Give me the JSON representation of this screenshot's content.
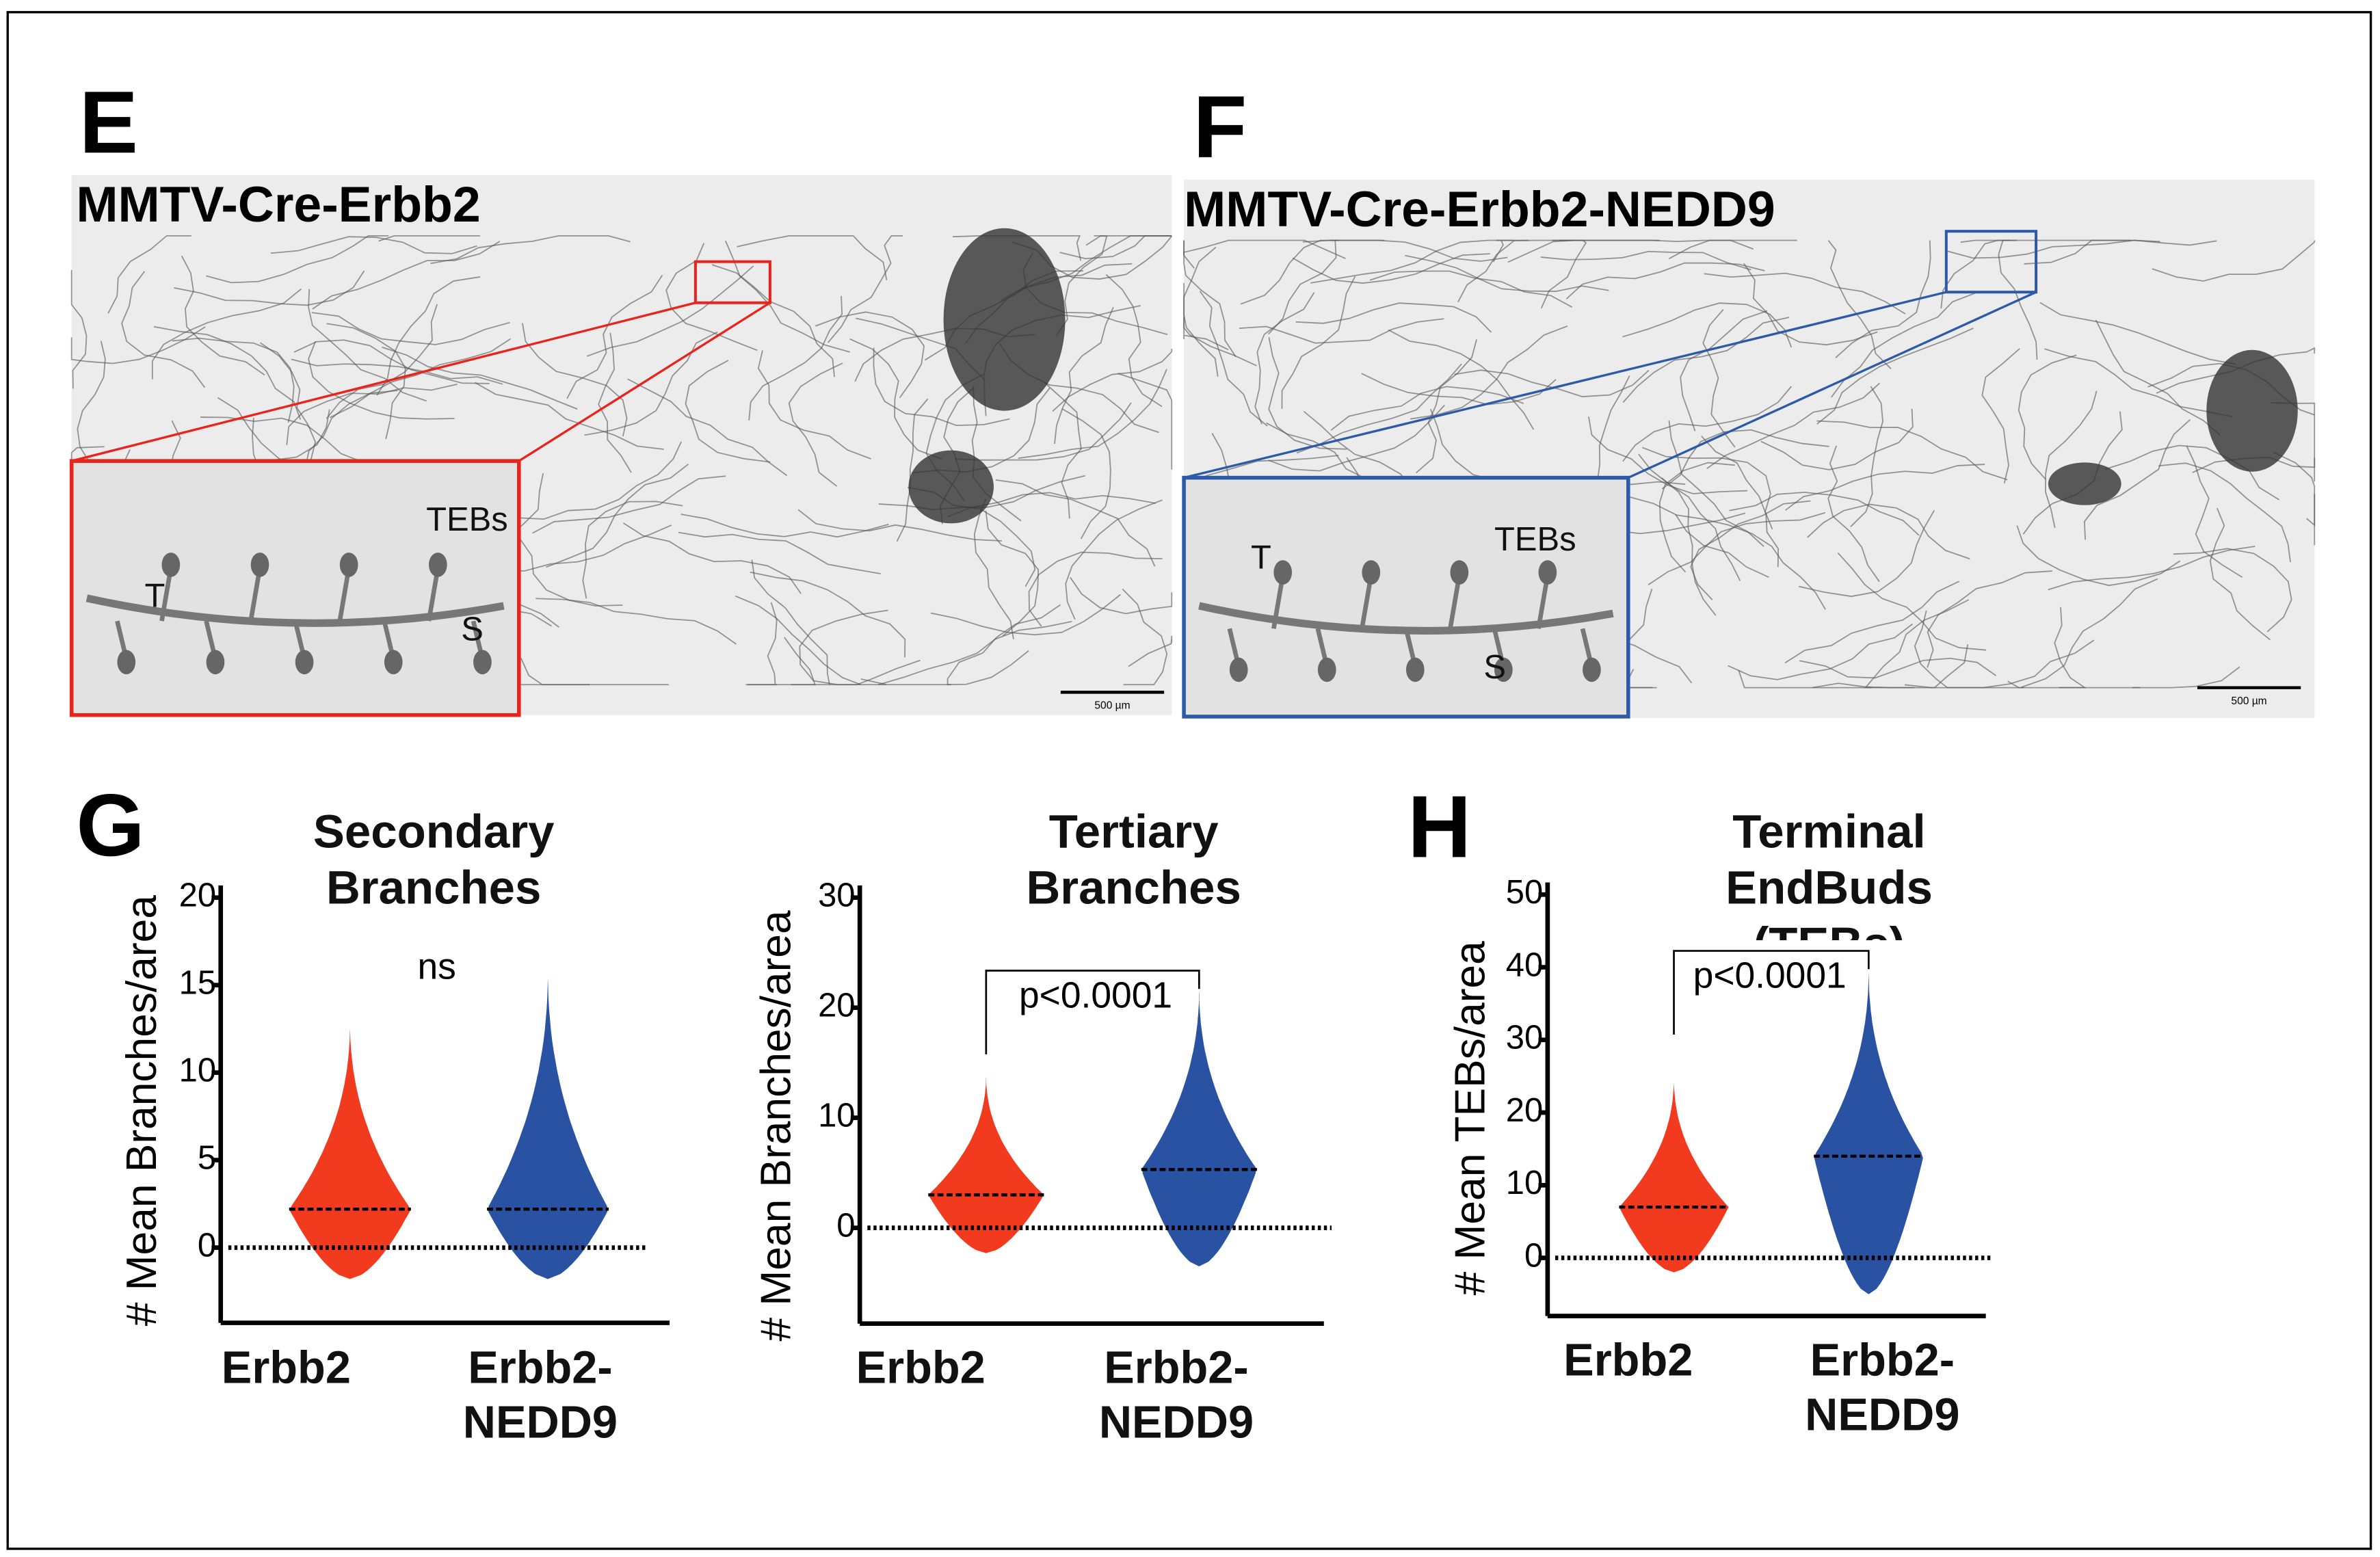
{
  "panels": [
    {
      "letter": "E",
      "title": "MMTV-Cre-Erbb2",
      "inset_labels": [
        "T",
        "S",
        "TEBs"
      ],
      "scale_bar": "500 µm",
      "color": "#e8241c"
    },
    {
      "letter": "F",
      "title": "MMTV-Cre-Erbb2-NEDD9",
      "inset_labels": [
        "T",
        "S",
        "TEBs"
      ],
      "scale_bar": "500 µm",
      "color": "#2d5aa8"
    }
  ],
  "chart_data": [
    {
      "type": "violin",
      "panel": "G",
      "title": "Secondary Branches",
      "ylabel": "# Mean Branches/area",
      "categories": [
        "Erbb2",
        "Erbb2-NEDD9"
      ],
      "colors": [
        "#f23a1f",
        "#2952a3"
      ],
      "medians": [
        2.2,
        2.2
      ],
      "min": [
        -1.8,
        -1.8
      ],
      "max": [
        13,
        16
      ],
      "annotation": "ns",
      "ylim": [
        -4.3,
        20
      ],
      "yticks": [
        0,
        5,
        10,
        15,
        20
      ]
    },
    {
      "type": "violin",
      "title": "Tertiary Branches",
      "ylabel": "# Mean Branches/area",
      "categories": [
        "Erbb2",
        "Erbb2-NEDD9"
      ],
      "colors": [
        "#f23a1f",
        "#2952a3"
      ],
      "medians": [
        3,
        5.3
      ],
      "min": [
        -2.3,
        -3.5
      ],
      "max": [
        14,
        22
      ],
      "annotation": "p<0.0001",
      "ylim": [
        -8.7,
        30
      ],
      "yticks": [
        0,
        10,
        20,
        30
      ]
    },
    {
      "type": "violin",
      "panel": "H",
      "title": "Terminal EndBuds (TEBs)",
      "ylabel": "# Mean TEBs/area",
      "categories": [
        "Erbb2",
        "Erbb2-NEDD9"
      ],
      "colors": [
        "#f23a1f",
        "#2952a3"
      ],
      "medians": [
        7,
        14
      ],
      "min": [
        -2,
        -5
      ],
      "max": [
        25,
        40
      ],
      "annotation": "p<0.0001",
      "ylim": [
        -8,
        50
      ],
      "yticks": [
        0,
        10,
        20,
        30,
        40,
        50
      ]
    }
  ]
}
